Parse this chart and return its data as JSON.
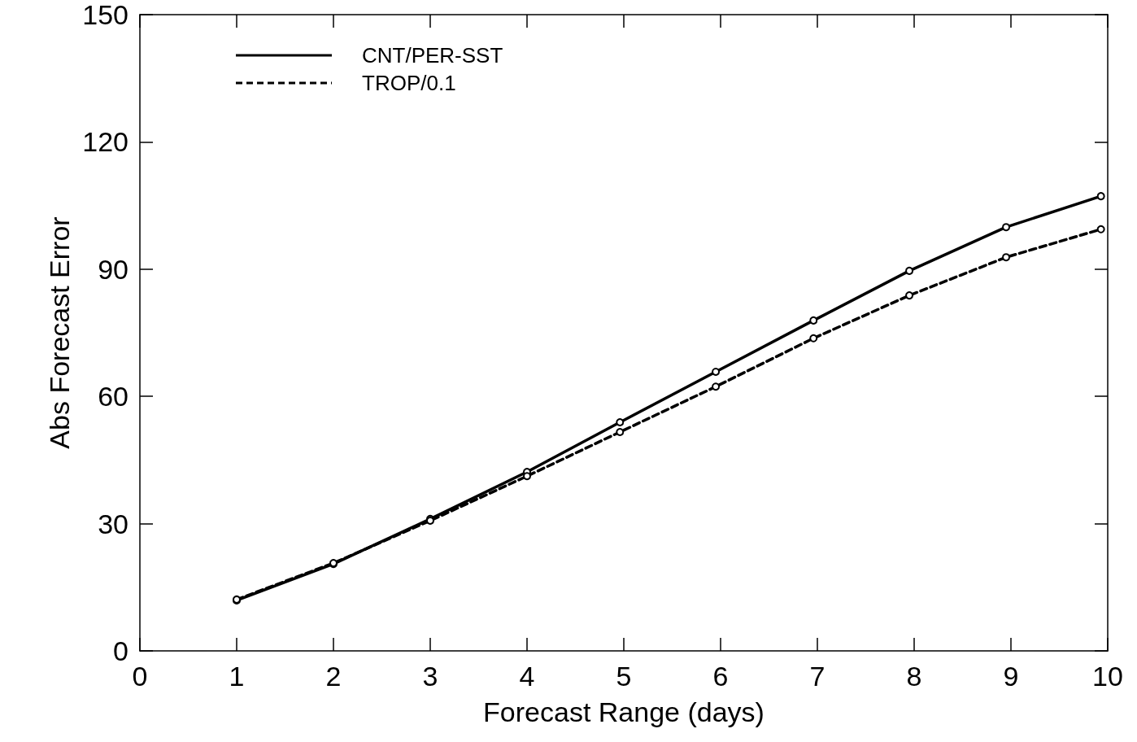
{
  "chart_data": {
    "type": "line",
    "xlabel": "Forecast Range (days)",
    "ylabel": "Abs Forecast Error",
    "xlim": [
      0,
      10
    ],
    "xticks": [
      0,
      1,
      2,
      3,
      4,
      5,
      6,
      7,
      8,
      9,
      10
    ],
    "ylim": [
      0,
      150
    ],
    "yticks": [
      0,
      30,
      60,
      90,
      120,
      150
    ],
    "grid": false,
    "legend": "top left",
    "marker": "circle",
    "series": [
      {
        "name": "CNT/PER-SST",
        "color": "#000000",
        "line_style": "solid",
        "x": [
          1,
          2,
          3,
          4,
          4.96,
          5.95,
          6.96,
          7.95,
          8.95,
          9.93
        ],
        "values": [
          11.9,
          20.5,
          31.1,
          42.2,
          53.9,
          65.8,
          77.9,
          89.6,
          99.9,
          107.2
        ]
      },
      {
        "name": "TROP/0.1",
        "color": "#000000",
        "line_style": "dashed",
        "x": [
          1,
          2,
          3,
          4,
          4.96,
          5.95,
          6.96,
          7.95,
          8.95,
          9.93
        ],
        "values": [
          12.1,
          20.7,
          30.7,
          41.2,
          51.6,
          62.3,
          73.7,
          83.8,
          92.8,
          99.4
        ]
      }
    ]
  }
}
